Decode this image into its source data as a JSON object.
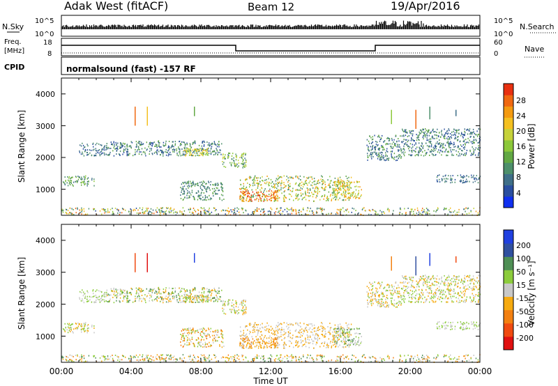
{
  "header": {
    "station": "Adak West (fitACF)",
    "beam": "Beam 12",
    "date": "19/Apr/2016"
  },
  "noise_panel": {
    "left_label": "N.Sky",
    "left_ticks": [
      "10^5",
      "10^0"
    ],
    "right_label": "N.Search",
    "right_ticks": [
      "10^5",
      "10^0"
    ]
  },
  "freq_panel": {
    "left_label_1": "Freq.",
    "left_label_2": "[MHz]",
    "left_ticks": [
      "18",
      "8"
    ],
    "right_label": "Nave",
    "right_ticks": [
      "60",
      "0"
    ],
    "freq_high_mhz": 12.5,
    "freq_low_mhz": 10.5,
    "low_start_hour": 10.0,
    "low_end_hour": 18.0
  },
  "cpid_panel": {
    "label": "CPID",
    "text": "normalsound (fast) -157 RF"
  },
  "power_panel": {
    "ylabel": "Slant Range [km]",
    "yticks": [
      "1000",
      "2000",
      "3000",
      "4000"
    ],
    "colorbar_label": "Power [dB]",
    "colorbar_ticks": [
      "4",
      "8",
      "12",
      "16",
      "20",
      "24",
      "28"
    ]
  },
  "velocity_panel": {
    "ylabel": "Slant Range [km]",
    "yticks": [
      "1000",
      "2000",
      "3000",
      "4000"
    ],
    "colorbar_label": "Velocity [m s⁻¹]",
    "colorbar_ticks": [
      "200",
      "100",
      "50",
      "15",
      "-15",
      "-50",
      "-100",
      "-200"
    ]
  },
  "xaxis": {
    "label": "Time UT",
    "ticks": [
      "00:00",
      "04:00",
      "08:00",
      "12:00",
      "16:00",
      "20:00",
      "00:00"
    ]
  },
  "colors": {
    "power_scale": [
      "#1030f0",
      "#2a4fa0",
      "#3f6f88",
      "#4d8f6b",
      "#62a844",
      "#8cc83a",
      "#c6d23a",
      "#f4c020",
      "#f49a10",
      "#f06810",
      "#e83010"
    ],
    "velocity_scale": [
      "#e01010",
      "#f04a10",
      "#f38010",
      "#f6aa10",
      "#c8c8c8",
      "#8ccc3c",
      "#4f8f55",
      "#3050a0",
      "#2040e0"
    ]
  },
  "chart_data": {
    "type": "heatmap",
    "x_range_hours": [
      0,
      24
    ],
    "y_range_km": [
      180,
      4500
    ],
    "scatter_regions": [
      {
        "t0": 0.0,
        "t1": 1.9,
        "r0": 1100,
        "r1": 1420,
        "power": [
          2,
          5
        ],
        "vel": [
          3,
          5
        ]
      },
      {
        "t0": 1.0,
        "t1": 2.6,
        "r0": 2050,
        "r1": 2450,
        "power": [
          1,
          3
        ],
        "vel": [
          4,
          5
        ]
      },
      {
        "t0": 2.6,
        "t1": 9.2,
        "r0": 2050,
        "r1": 2520,
        "power": [
          1,
          4
        ],
        "vel": [
          3,
          6
        ]
      },
      {
        "t0": 7.0,
        "t1": 8.4,
        "r0": 2050,
        "r1": 2280,
        "power": [
          5,
          7
        ],
        "vel": [
          3,
          5
        ]
      },
      {
        "t0": 9.2,
        "t1": 10.6,
        "r0": 1650,
        "r1": 2150,
        "power": [
          2,
          6
        ],
        "vel": [
          3,
          5
        ]
      },
      {
        "t0": 6.8,
        "t1": 9.3,
        "r0": 650,
        "r1": 1250,
        "power": [
          2,
          4
        ],
        "vel": [
          2,
          5
        ]
      },
      {
        "t0": 10.2,
        "t1": 16.6,
        "r0": 620,
        "r1": 1420,
        "power": [
          3,
          8
        ],
        "vel": [
          3,
          4
        ]
      },
      {
        "t0": 10.2,
        "t1": 12.4,
        "r0": 620,
        "r1": 950,
        "power": [
          8,
          10
        ],
        "vel": [
          2,
          3
        ]
      },
      {
        "t0": 15.6,
        "t1": 17.2,
        "r0": 700,
        "r1": 1250,
        "power": [
          5,
          8
        ],
        "vel": [
          4,
          6
        ]
      },
      {
        "t0": 17.5,
        "t1": 19.5,
        "r0": 1900,
        "r1": 2700,
        "power": [
          1,
          4
        ],
        "vel": [
          3,
          5
        ]
      },
      {
        "t0": 19.5,
        "t1": 24.0,
        "r0": 2050,
        "r1": 2900,
        "power": [
          1,
          4
        ],
        "vel": [
          3,
          5
        ]
      },
      {
        "t0": 21.5,
        "t1": 24.0,
        "r0": 1200,
        "r1": 1450,
        "power": [
          1,
          3
        ],
        "vel": [
          4,
          5
        ]
      },
      {
        "t0": 0.0,
        "t1": 24.0,
        "r0": 180,
        "r1": 420,
        "power": [
          1,
          9
        ],
        "vel": [
          2,
          6
        ]
      }
    ],
    "vertical_streaks": [
      {
        "t": 4.2,
        "r0": 3000,
        "r1": 3600,
        "power": 9,
        "vel": 1
      },
      {
        "t": 4.9,
        "r0": 3000,
        "r1": 3600,
        "power": 7,
        "vel": 0
      },
      {
        "t": 7.6,
        "r0": 3300,
        "r1": 3600,
        "power": 4,
        "vel": 8
      },
      {
        "t": 18.9,
        "r0": 3050,
        "r1": 3500,
        "power": 5,
        "vel": 2
      },
      {
        "t": 20.3,
        "r0": 2900,
        "r1": 3500,
        "power": 9,
        "vel": 7
      },
      {
        "t": 21.1,
        "r0": 3200,
        "r1": 3600,
        "power": 3,
        "vel": 8
      },
      {
        "t": 22.6,
        "r0": 3300,
        "r1": 3500,
        "power": 2,
        "vel": 1
      }
    ]
  }
}
